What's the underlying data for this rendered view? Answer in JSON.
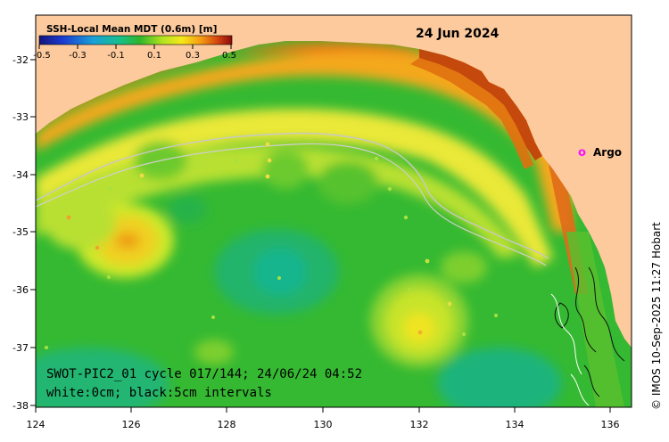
{
  "date": "24 Jun 2024",
  "colorbar": {
    "title": "SSH-Local Mean MDT (0.6m) [m]",
    "ticks": [
      "-0.5",
      "-0.3",
      "-0.1",
      "0.1",
      "0.3",
      "0.5"
    ]
  },
  "legend": {
    "argo_symbol": "o",
    "argo_label": "Argo"
  },
  "info": {
    "line1": "SWOT-PIC2_01 cycle 017/144; 24/06/24 04:52",
    "line2": "white:0cm; black:5cm intervals"
  },
  "credit": "© IMOS 10-Sep-2025 11:27 Hobart",
  "axes": {
    "x_ticks": [
      "124",
      "126",
      "128",
      "130",
      "132",
      "134",
      "136"
    ],
    "y_ticks": [
      "-32",
      "-33",
      "-34",
      "-35",
      "-36",
      "-37",
      "-38"
    ]
  },
  "colors": {
    "land": "#fdca9d",
    "ocean_base": "#33b830",
    "warm_orange": "#f08a10",
    "yellow": "#eef020",
    "teal": "#1bb58c",
    "argo_marker": "#ff10ff",
    "swot_swath": "#e06c1a"
  }
}
